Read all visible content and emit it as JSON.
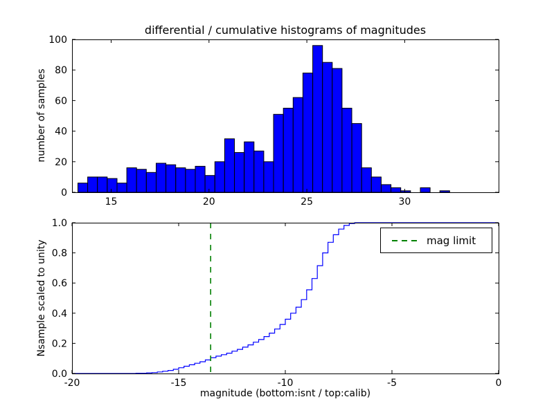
{
  "figure": {
    "background": "#ffffff",
    "title": "differential / cumulative histograms of magnitudes",
    "xlabel": "magnitude (bottom:isnt / top:calib)"
  },
  "chart_data": [
    {
      "name": "differential-histogram",
      "type": "bar",
      "title": "differential / cumulative histograms of magnitudes",
      "ylabel": "number of samples",
      "xlim": [
        13.0,
        34.8
      ],
      "ylim": [
        0,
        100
      ],
      "xticks": [
        15,
        20,
        25,
        30
      ],
      "xtick_labels": [
        "15",
        "20",
        "25",
        "30"
      ],
      "yticks": [
        0,
        20,
        40,
        60,
        80,
        100
      ],
      "ytick_labels": [
        "0",
        "20",
        "40",
        "60",
        "80",
        "100"
      ],
      "grid": false,
      "bar_color": "#0000ff",
      "bar_edge_color": "#000000",
      "bin_start": 13.3,
      "bin_width": 0.5,
      "values": [
        6,
        10,
        10,
        9,
        6,
        16,
        15,
        13,
        19,
        18,
        16,
        15,
        17,
        11,
        20,
        35,
        26,
        33,
        27,
        20,
        51,
        55,
        62,
        78,
        96,
        85,
        81,
        55,
        45,
        16,
        10,
        5,
        3,
        1,
        0,
        3,
        0,
        1
      ]
    },
    {
      "name": "cumulative-histogram",
      "type": "line",
      "line_style": "step",
      "ylabel": "Nsample scaled to unity",
      "xlabel": "magnitude (bottom:isnt / top:calib)",
      "xlim": [
        -20,
        0
      ],
      "ylim": [
        0,
        1
      ],
      "xticks": [
        -20,
        -15,
        -10,
        -5,
        0
      ],
      "xtick_labels": [
        "-20",
        "-15",
        "-10",
        "-5",
        "0"
      ],
      "yticks": [
        0,
        0.2,
        0.4,
        0.6,
        0.8,
        1.0
      ],
      "ytick_labels": [
        "0.0",
        "0.2",
        "0.4",
        "0.6",
        "0.8",
        "1.0"
      ],
      "grid": false,
      "line_color": "#0000ff",
      "steps": [
        [
          -20,
          0
        ],
        [
          -17.5,
          0
        ],
        [
          -17.0,
          0.002
        ],
        [
          -16.5,
          0.004
        ],
        [
          -16.25,
          0.006
        ],
        [
          -16.0,
          0.01
        ],
        [
          -15.75,
          0.015
        ],
        [
          -15.5,
          0.02
        ],
        [
          -15.25,
          0.028
        ],
        [
          -15.0,
          0.038
        ],
        [
          -14.75,
          0.048
        ],
        [
          -14.5,
          0.058
        ],
        [
          -14.25,
          0.068
        ],
        [
          -14.0,
          0.078
        ],
        [
          -13.75,
          0.09
        ],
        [
          -13.5,
          0.105
        ],
        [
          -13.25,
          0.115
        ],
        [
          -13.0,
          0.125
        ],
        [
          -12.75,
          0.135
        ],
        [
          -12.5,
          0.148
        ],
        [
          -12.25,
          0.16
        ],
        [
          -12.0,
          0.175
        ],
        [
          -11.75,
          0.19
        ],
        [
          -11.5,
          0.208
        ],
        [
          -11.25,
          0.225
        ],
        [
          -11.0,
          0.245
        ],
        [
          -10.75,
          0.268
        ],
        [
          -10.5,
          0.295
        ],
        [
          -10.25,
          0.325
        ],
        [
          -10.0,
          0.36
        ],
        [
          -9.75,
          0.4
        ],
        [
          -9.5,
          0.44
        ],
        [
          -9.25,
          0.49
        ],
        [
          -9.0,
          0.555
        ],
        [
          -8.75,
          0.63
        ],
        [
          -8.5,
          0.715
        ],
        [
          -8.25,
          0.8
        ],
        [
          -8.0,
          0.87
        ],
        [
          -7.75,
          0.92
        ],
        [
          -7.5,
          0.958
        ],
        [
          -7.25,
          0.982
        ],
        [
          -7.0,
          0.995
        ],
        [
          -6.75,
          1.0
        ],
        [
          0,
          1.0
        ]
      ],
      "mag_limit": {
        "x": -13.5,
        "color": "#008000",
        "label": "mag limit"
      },
      "legend": {
        "position": "upper right",
        "entries": [
          "mag limit"
        ]
      }
    }
  ]
}
